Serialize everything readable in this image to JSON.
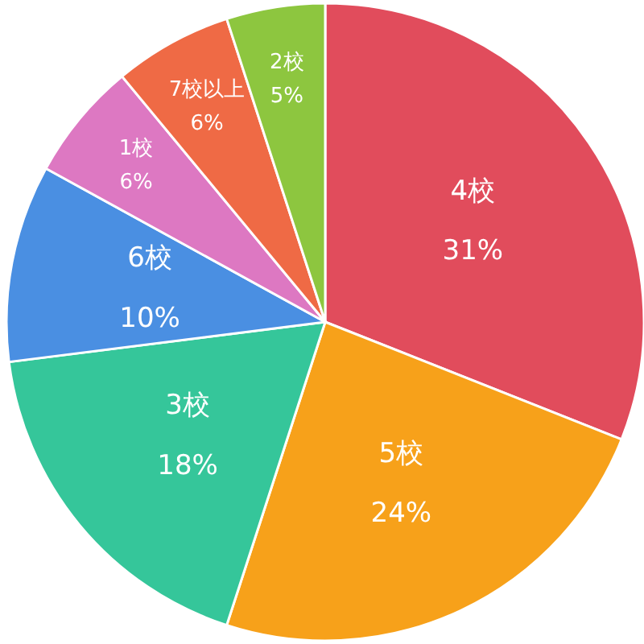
{
  "chart_data": {
    "type": "pie",
    "categories": [
      "4校",
      "5校",
      "3校",
      "6校",
      "1校",
      "7校以上",
      "2校"
    ],
    "values": [
      31,
      24,
      18,
      10,
      6,
      6,
      5
    ],
    "value_labels": [
      "31%",
      "24%",
      "18%",
      "10%",
      "6%",
      "6%",
      "5%"
    ],
    "colors": [
      "#e14c5c",
      "#f7a11a",
      "#35c69a",
      "#4a8fe2",
      "#dd78c2",
      "#ef6a45",
      "#8dc63f"
    ]
  }
}
